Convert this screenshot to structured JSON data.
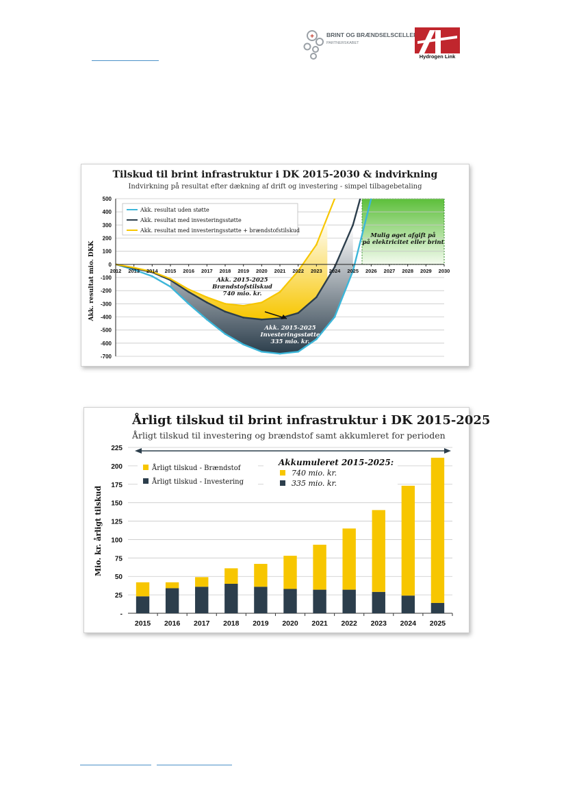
{
  "header": {
    "partner_logo_name": "BRINT OG BRÆNDSELSCELLER",
    "partner_logo_sub": "PARTNERSKABET",
    "brand_logo_text": "Hydrogen Link"
  },
  "colors": {
    "cyan": "#3cb6d9",
    "navy": "#2c3e4c",
    "yellow": "#f7c600",
    "green": "#6fc94a"
  },
  "chart_data": [
    {
      "type": "line",
      "title": "Tilskud til brint infrastruktur  i DK 2015-2030 & indvirkning",
      "subtitle": "Indvirkning på resultat efter dækning af drift og investering - simpel tilbagebetaling",
      "xlabel": "",
      "ylabel": "Akk. resultat mio. DKK",
      "x": [
        2012,
        2013,
        2014,
        2015,
        2016,
        2017,
        2018,
        2019,
        2020,
        2021,
        2022,
        2023,
        2024,
        2025,
        2026,
        2027,
        2028,
        2029,
        2030
      ],
      "x_ticks": [
        "2012",
        "2013",
        "2014",
        "2015",
        "2016",
        "2017",
        "2018",
        "2019",
        "2020",
        "2021",
        "2022",
        "2023",
        "2024",
        "2025",
        "2026",
        "2027",
        "2028",
        "2029",
        "2030"
      ],
      "y_ticks": [
        "500",
        "400",
        "300",
        "200",
        "100",
        "0",
        "-100",
        "-200",
        "-300",
        "-400",
        "-500",
        "-600",
        "-700"
      ],
      "ylim": [
        -700,
        500
      ],
      "xlim": [
        2012,
        2030
      ],
      "grid": true,
      "legend_position": "top-left",
      "series": [
        {
          "name": "Akk. resultat uden støtte",
          "color": "#3cb6d9",
          "x": [
            2012,
            2013,
            2014,
            2015,
            2016,
            2017,
            2018,
            2019,
            2020,
            2021,
            2022,
            2023,
            2024,
            2025,
            2026
          ],
          "values": [
            0,
            -40,
            -90,
            -170,
            -300,
            -420,
            -530,
            -610,
            -665,
            -680,
            -665,
            -570,
            -400,
            -50,
            500
          ]
        },
        {
          "name": "Akk. resultat med investeringsstøtte",
          "color": "#2c3e4c",
          "x": [
            2012,
            2013,
            2014,
            2015,
            2016,
            2017,
            2018,
            2019,
            2020,
            2021,
            2022,
            2023,
            2024,
            2025,
            2025.4
          ],
          "values": [
            0,
            -30,
            -60,
            -120,
            -210,
            -290,
            -360,
            -405,
            -420,
            -410,
            -370,
            -250,
            -20,
            300,
            500
          ]
        },
        {
          "name": "Akk. resultat med investeringsstøtte + brændstofstilskud",
          "color": "#f7c600",
          "x": [
            2012,
            2013,
            2014,
            2015,
            2016,
            2017,
            2018,
            2019,
            2020,
            2021,
            2022,
            2023,
            2024
          ],
          "values": [
            0,
            -25,
            -55,
            -110,
            -190,
            -250,
            -300,
            -315,
            -290,
            -210,
            -50,
            150,
            500
          ]
        }
      ],
      "annotations": [
        {
          "text": [
            "Akk. 2015-2025",
            "Brændstofstilskud",
            "740  mio. kr."
          ]
        },
        {
          "text": [
            "Akk. 2015-2025",
            "Investeringsstøtte",
            "335 mio. kr."
          ]
        },
        {
          "text": [
            "Mulig øget afgift på",
            "på elektricitet eller brint"
          ]
        }
      ]
    },
    {
      "type": "bar",
      "stacked": true,
      "title": "Årligt tilskud til brint infrastruktur i DK 2015-2025",
      "subtitle": "Årligt tilskud til investering og brændstof samt akkumleret for perioden",
      "xlabel": "",
      "ylabel": "Mio. kr. årligt tilskud",
      "categories": [
        "2015",
        "2016",
        "2017",
        "2018",
        "2019",
        "2020",
        "2021",
        "2022",
        "2023",
        "2024",
        "2025"
      ],
      "y_ticks": [
        "225",
        "200",
        "175",
        "150",
        "125",
        "100",
        "75",
        "50",
        "25",
        "-"
      ],
      "ylim": [
        0,
        225
      ],
      "grid": true,
      "legend_position": "top-left",
      "series": [
        {
          "name": "Årligt tilskud - Investering",
          "color": "#2c3e4c",
          "values": [
            23,
            34,
            36,
            40,
            36,
            33,
            32,
            32,
            29,
            24,
            14
          ]
        },
        {
          "name": "Årligt tilskud - Brændstof",
          "color": "#f7c600",
          "values": [
            19,
            8,
            13,
            21,
            31,
            45,
            61,
            83,
            111,
            149,
            197
          ]
        }
      ],
      "accumulated": {
        "title": "Akkumuleret 2015-2025:",
        "items": [
          {
            "label": "740 mio. kr.",
            "color": "#f7c600"
          },
          {
            "label": "335 mio. kr.",
            "color": "#2c3e4c"
          }
        ]
      }
    }
  ]
}
